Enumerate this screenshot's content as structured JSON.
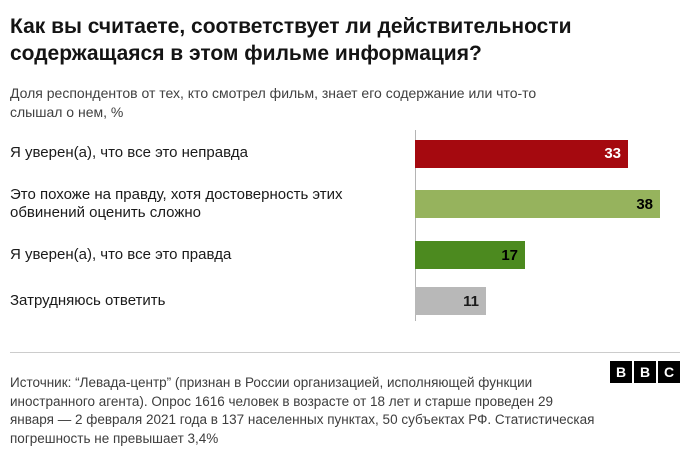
{
  "header": {
    "title": "Как вы считаете, соответствует ли действительности содержащаяся в этом фильме информация?",
    "subtitle": "Доля респондентов от тех, кто смотрел фильм, знает его содержание или что-то слышал о нем, %"
  },
  "chart_data": {
    "type": "bar",
    "orientation": "horizontal",
    "title": "Как вы считаете, соответствует ли действительности содержащаяся в этом фильме информация?",
    "subtitle": "Доля респондентов от тех, кто смотрел фильм, знает его содержание или что-то слышал о нем, %",
    "categories": [
      "Я уверен(а), что все это неправда",
      "Это похоже на правду, хотя достоверность этих обвинений оценить сложно",
      "Я уверен(а), что все это правда",
      "Затрудняюсь ответить"
    ],
    "values": [
      33,
      38,
      17,
      11
    ],
    "bar_colors": [
      "#a5090f",
      "#96b35d",
      "#4c8a1f",
      "#b8b8b8"
    ],
    "value_label_colors": [
      "#ffffff",
      "#000000",
      "#000000",
      "#1a1a1a"
    ],
    "xlim": [
      0,
      40
    ],
    "grid": false,
    "legend": "none",
    "axis_line_color": "#b4b4b4"
  },
  "footer": {
    "source": "Источник: “Левада-центр” (признан в России организацией, исполняющей функции иностранного агента). Опрос 1616 человек в возрасте от 18 лет и старше проведен 29 января — 2 февраля 2021 года в 137 населенных пунктах, 50 субъектах РФ. Статистическая погрешность не превышает 3,4%",
    "logo": [
      "B",
      "B",
      "C"
    ]
  }
}
